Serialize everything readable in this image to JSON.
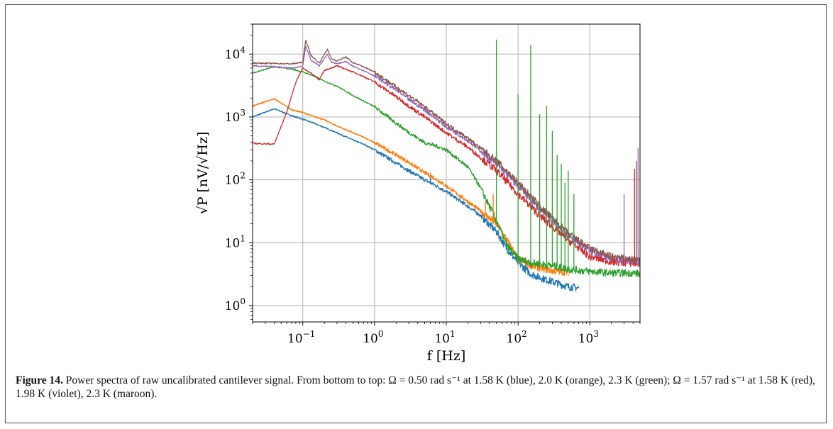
{
  "figure": {
    "caption_label": "Figure 14.",
    "caption_text": "Power spectra of raw uncalibrated cantilever signal. From bottom to top: Ω = 0.50 rad s⁻¹ at 1.58 K (blue), 2.0 K (orange), 2.3 K (green); Ω = 1.57 rad s⁻¹ at 1.58 K (red), 1.98 K (violet), 2.3 K (maroon)."
  },
  "chart_data": {
    "type": "line",
    "x_scale": "log",
    "y_scale": "log",
    "xlim": [
      0.02,
      5000
    ],
    "ylim": [
      0.55,
      30000
    ],
    "xlabel": "f  [Hz]",
    "ylabel": "√P [nV/√Hz]",
    "grid": true,
    "x_tick_values": [
      0.1,
      1,
      10,
      100,
      1000
    ],
    "x_tick_labels": [
      {
        "base": "10",
        "exp": "−1"
      },
      {
        "base": "10",
        "exp": "0"
      },
      {
        "base": "10",
        "exp": "1"
      },
      {
        "base": "10",
        "exp": "2"
      },
      {
        "base": "10",
        "exp": "3"
      }
    ],
    "y_tick_values": [
      1,
      10,
      100,
      1000,
      10000
    ],
    "y_tick_labels": [
      {
        "base": "10",
        "exp": "0"
      },
      {
        "base": "10",
        "exp": "1"
      },
      {
        "base": "10",
        "exp": "2"
      },
      {
        "base": "10",
        "exp": "3"
      },
      {
        "base": "10",
        "exp": "4"
      }
    ],
    "series": [
      {
        "color": "#1f77b4",
        "x": [
          0.02,
          0.04,
          0.07,
          0.1,
          0.15,
          0.2,
          0.3,
          0.5,
          0.7,
          1,
          2,
          3,
          5,
          7,
          10,
          20,
          30,
          50,
          70,
          100,
          150,
          200,
          300,
          500,
          700
        ],
        "y": [
          1000,
          1350,
          1050,
          920,
          780,
          680,
          560,
          430,
          370,
          300,
          185,
          140,
          100,
          82,
          65,
          38,
          27,
          15,
          8,
          4.8,
          3.2,
          2.8,
          2.4,
          2.0,
          1.9
        ]
      },
      {
        "color": "#ff7f0e",
        "x": [
          0.02,
          0.04,
          0.07,
          0.1,
          0.15,
          0.2,
          0.3,
          0.5,
          0.7,
          1,
          2,
          3,
          5,
          7,
          10,
          20,
          30,
          50,
          70,
          100,
          150,
          200,
          300,
          500
        ],
        "y": [
          1500,
          1950,
          1300,
          1180,
          1000,
          900,
          720,
          560,
          480,
          390,
          250,
          190,
          130,
          105,
          80,
          45,
          32,
          20,
          11,
          5.5,
          4.4,
          4.0,
          3.6,
          3.4
        ]
      },
      {
        "color": "#2ca02c",
        "x": [
          0.02,
          0.04,
          0.07,
          0.1,
          0.15,
          0.2,
          0.3,
          0.5,
          0.7,
          1,
          2,
          3,
          5,
          7,
          10,
          20,
          30,
          50,
          70,
          100,
          150,
          200,
          300,
          500,
          1000,
          2000,
          4000,
          5000
        ],
        "y": [
          5000,
          6300,
          5800,
          5200,
          4400,
          3700,
          3100,
          2200,
          1800,
          1450,
          800,
          570,
          390,
          350,
          300,
          160,
          75,
          22,
          9,
          5.5,
          4.8,
          4.6,
          4.3,
          3.8,
          3.5,
          3.3,
          3.3,
          3.2
        ]
      },
      {
        "color": "#d62728",
        "x": [
          0.02,
          0.04,
          0.06,
          0.08,
          0.1,
          0.13,
          0.17,
          0.2,
          0.3,
          0.5,
          0.7,
          1,
          2,
          3,
          5,
          10,
          20,
          50,
          100,
          200,
          500,
          1000,
          2000,
          5000
        ],
        "y": [
          380,
          370,
          1200,
          3600,
          6000,
          5000,
          3900,
          5500,
          6500,
          5200,
          4400,
          3600,
          2100,
          1500,
          1000,
          560,
          330,
          140,
          60,
          27,
          11,
          6.0,
          5.0,
          4.6
        ]
      },
      {
        "color": "#9467bd",
        "x": [
          0.02,
          0.04,
          0.07,
          0.1,
          0.11,
          0.13,
          0.17,
          0.2,
          0.22,
          0.25,
          0.3,
          0.4,
          0.5,
          0.7,
          1,
          2,
          3,
          5,
          10,
          20,
          50,
          100,
          200,
          500,
          1000,
          2000,
          5000
        ],
        "y": [
          6500,
          6300,
          6000,
          6400,
          13500,
          8000,
          6500,
          8500,
          10000,
          7500,
          7000,
          7600,
          6400,
          5500,
          4500,
          2700,
          1900,
          1300,
          700,
          420,
          180,
          80,
          34,
          13,
          7.5,
          5.5,
          5.0
        ]
      },
      {
        "color": "#8c564b",
        "x": [
          0.02,
          0.04,
          0.07,
          0.1,
          0.11,
          0.13,
          0.17,
          0.2,
          0.22,
          0.25,
          0.3,
          0.4,
          0.5,
          0.7,
          1,
          2,
          3,
          5,
          10,
          20,
          50,
          100,
          200,
          500,
          1000,
          2000,
          5000
        ],
        "y": [
          7200,
          7100,
          7000,
          7400,
          17000,
          9500,
          7200,
          10000,
          12000,
          8500,
          7800,
          9000,
          7300,
          6300,
          5200,
          3000,
          2200,
          1450,
          780,
          460,
          200,
          90,
          38,
          14,
          8,
          6,
          5.2
        ]
      }
    ],
    "spikes": [
      {
        "color": "#2ca02c",
        "x": 50,
        "y": 17000
      },
      {
        "color": "#2ca02c",
        "x": 100,
        "y": 2300
      },
      {
        "color": "#2ca02c",
        "x": 150,
        "y": 14000
      },
      {
        "color": "#2ca02c",
        "x": 200,
        "y": 1100
      },
      {
        "color": "#2ca02c",
        "x": 250,
        "y": 1500
      },
      {
        "color": "#2ca02c",
        "x": 300,
        "y": 600
      },
      {
        "color": "#2ca02c",
        "x": 350,
        "y": 250
      },
      {
        "color": "#2ca02c",
        "x": 400,
        "y": 180
      },
      {
        "color": "#2ca02c",
        "x": 450,
        "y": 90
      },
      {
        "color": "#2ca02c",
        "x": 500,
        "y": 140
      },
      {
        "color": "#2ca02c",
        "x": 600,
        "y": 60
      },
      {
        "color": "#ff7f0e",
        "x": 35,
        "y": 45
      },
      {
        "color": "#ff7f0e",
        "x": 45,
        "y": 60
      },
      {
        "color": "#ff7f0e",
        "x": 6,
        "y": 130
      },
      {
        "color": "#1f77b4",
        "x": 6,
        "y": 110
      },
      {
        "color": "#9467bd",
        "x": 4700,
        "y": 320
      },
      {
        "color": "#8c564b",
        "x": 4500,
        "y": 200
      },
      {
        "color": "#d62728",
        "x": 4200,
        "y": 150
      },
      {
        "color": "#9467bd",
        "x": 3000,
        "y": 60
      }
    ]
  }
}
